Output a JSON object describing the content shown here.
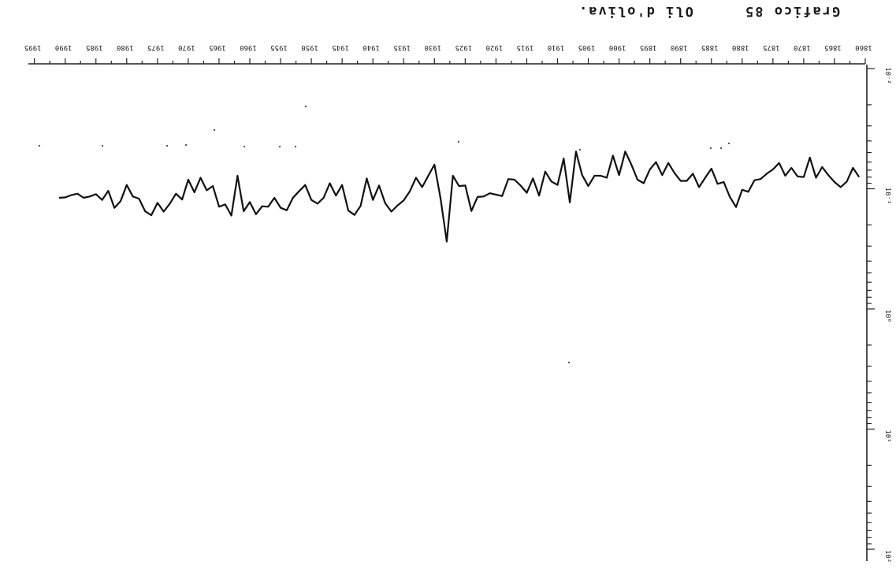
{
  "figure": {
    "title_right": "Grafico 85",
    "title_left": "Oli d'oliva."
  },
  "chart_data": {
    "type": "line",
    "orientation": "rotated 180 degrees",
    "title": "Grafico 85",
    "subtitle": "Oli d'oliva.",
    "xlabel": "",
    "ylabel": "",
    "x_axis_position": "top",
    "y_axis_position": "right",
    "y_scale": "log",
    "xlim": [
      1859,
      1996
    ],
    "ylim": [
      0.01,
      100
    ],
    "x_ticks": [
      1860,
      1865,
      1870,
      1875,
      1880,
      1885,
      1890,
      1895,
      1900,
      1905,
      1910,
      1915,
      1920,
      1925,
      1930,
      1935,
      1940,
      1945,
      1950,
      1955,
      1960,
      1965,
      1970,
      1975,
      1980,
      1985,
      1990,
      1995
    ],
    "x_tick_labels": [
      "1860",
      "1865",
      "1870",
      "1875",
      "1880",
      "1885",
      "1890",
      "1895",
      "1900",
      "1905",
      "1910",
      "1915",
      "1920",
      "1925",
      "1930",
      "1935",
      "1940",
      "1945",
      "1950",
      "1955",
      "1960",
      "1965",
      "1970",
      "1975",
      "1980",
      "1985",
      "1990",
      "1995"
    ],
    "y_ticks": [
      0.01,
      0.1,
      1,
      10,
      100
    ],
    "y_tick_labels": [
      "10⁻²",
      "10⁻¹",
      "10⁰",
      "10¹",
      "10²"
    ],
    "grid": false,
    "series": [
      {
        "x": [
          1861,
          1862,
          1863,
          1864,
          1865,
          1866,
          1867,
          1868,
          1869,
          1870,
          1871,
          1872,
          1873,
          1874,
          1875,
          1876,
          1877,
          1878,
          1879,
          1880,
          1881,
          1882,
          1883,
          1884,
          1885,
          1886,
          1887,
          1888,
          1889,
          1890,
          1891,
          1892,
          1893,
          1894,
          1895,
          1896,
          1897,
          1898,
          1899,
          1900,
          1901,
          1902,
          1903,
          1904,
          1905,
          1906,
          1907,
          1908,
          1909,
          1910,
          1911,
          1912,
          1913,
          1914,
          1915,
          1916,
          1917,
          1918,
          1919,
          1920,
          1921,
          1922,
          1923,
          1924,
          1925,
          1926,
          1927,
          1928,
          1929,
          1930,
          1931,
          1932,
          1933,
          1934,
          1935,
          1936,
          1937,
          1938,
          1939,
          1940,
          1941,
          1942,
          1943,
          1944,
          1945,
          1946,
          1947,
          1948,
          1949,
          1950,
          1951,
          1952,
          1953,
          1954,
          1955,
          1956,
          1957,
          1958,
          1959,
          1960,
          1961,
          1962,
          1963,
          1964,
          1965,
          1966,
          1967,
          1968,
          1969,
          1970,
          1971,
          1972,
          1973,
          1974,
          1975,
          1976,
          1977,
          1978,
          1979,
          1980,
          1981,
          1982,
          1983,
          1984,
          1985,
          1986,
          1987,
          1988,
          1989,
          1990,
          1991
        ],
        "y": [
          0.08,
          0.067,
          0.087,
          0.097,
          0.088,
          0.077,
          0.066,
          0.081,
          0.055,
          0.08,
          0.079,
          0.067,
          0.078,
          0.061,
          0.069,
          0.075,
          0.083,
          0.085,
          0.106,
          0.102,
          0.142,
          0.117,
          0.088,
          0.091,
          0.068,
          0.081,
          0.097,
          0.075,
          0.086,
          0.086,
          0.074,
          0.061,
          0.077,
          0.06,
          0.069,
          0.09,
          0.084,
          0.063,
          0.049,
          0.077,
          0.053,
          0.081,
          0.078,
          0.078,
          0.095,
          0.077,
          0.049,
          0.13,
          0.056,
          0.093,
          0.087,
          0.072,
          0.114,
          0.082,
          0.108,
          0.094,
          0.084,
          0.083,
          0.115,
          0.112,
          0.109,
          0.116,
          0.117,
          0.153,
          0.094,
          0.095,
          0.078,
          0.275,
          0.121,
          0.063,
          0.078,
          0.097,
          0.081,
          0.105,
          0.125,
          0.138,
          0.155,
          0.132,
          0.094,
          0.124,
          0.082,
          0.139,
          0.165,
          0.152,
          0.093,
          0.114,
          0.09,
          0.119,
          0.133,
          0.124,
          0.093,
          0.105,
          0.119,
          0.151,
          0.144,
          0.119,
          0.141,
          0.14,
          0.163,
          0.129,
          0.154,
          0.078,
          0.167,
          0.135,
          0.141,
          0.095,
          0.103,
          0.081,
          0.107,
          0.084,
          0.123,
          0.11,
          0.133,
          0.155,
          0.131,
          0.166,
          0.154,
          0.121,
          0.116,
          0.093,
          0.127,
          0.144,
          0.104,
          0.124,
          0.111,
          0.116,
          0.119,
          0.11,
          0.113,
          0.118,
          0.119
        ]
      }
    ]
  }
}
